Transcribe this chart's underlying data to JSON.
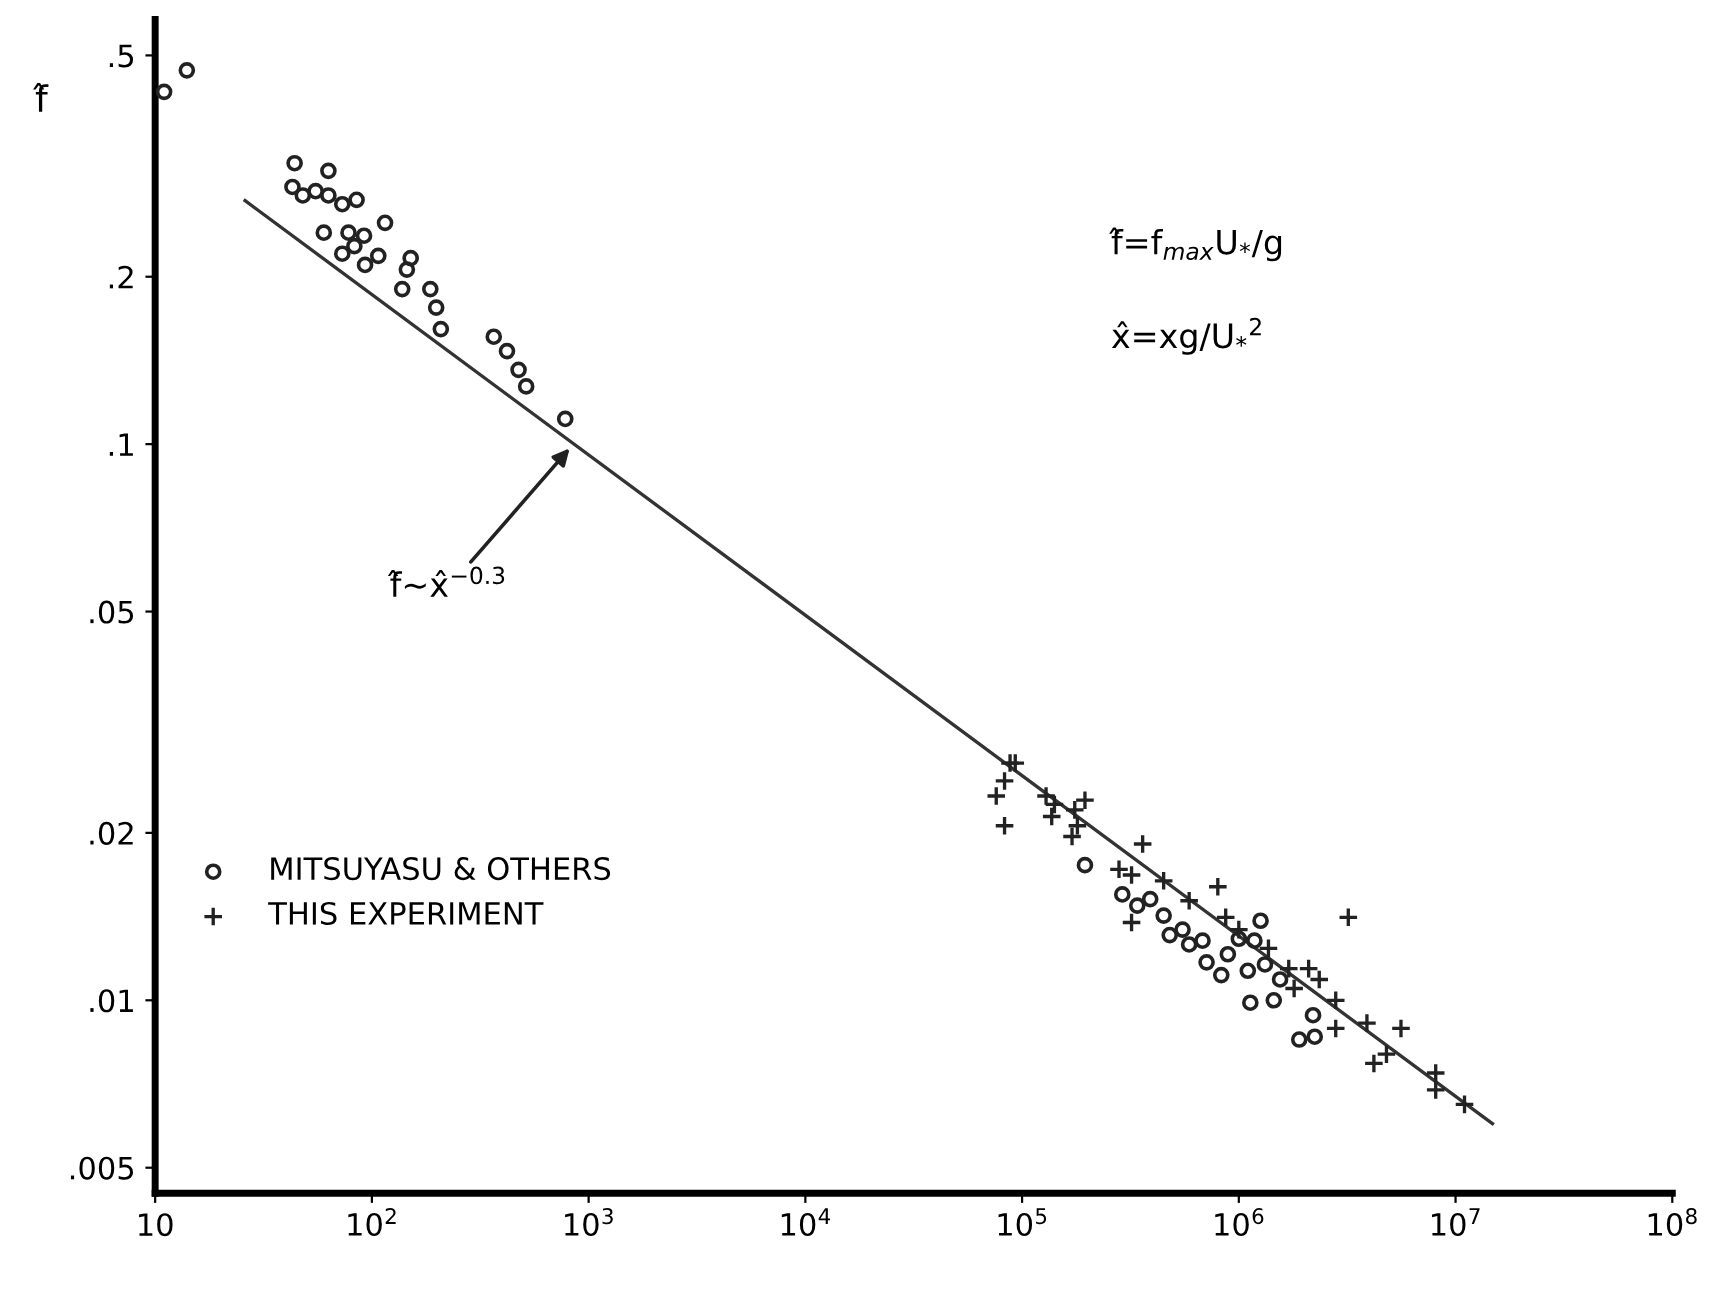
{
  "chart_data": {
    "type": "scatter",
    "ylabel": "f̂",
    "log": "xy",
    "xlim": [
      10,
      100000000
    ],
    "ylim": [
      0.0045,
      0.58
    ],
    "xticks": [
      10,
      {
        "value": 100,
        "label": "10$^{2}$"
      },
      {
        "value": 1000,
        "label": "10$^{3}$"
      },
      {
        "value": 10000,
        "label": "10$^{4}$"
      },
      {
        "value": 100000,
        "label": "10$^{5}$"
      },
      {
        "value": 1000000,
        "label": "10$^{6}$"
      },
      {
        "value": 10000000,
        "label": "10$^{7}$"
      },
      {
        "value": 100000000,
        "label": "10$^{8}$"
      }
    ],
    "yticks": [
      {
        "value": 0.5,
        "label": ".5"
      },
      {
        "value": 0.2,
        "label": ".2"
      },
      {
        "value": 0.1,
        "label": ".1"
      },
      {
        "value": 0.05,
        "label": ".05"
      },
      {
        "value": 0.02,
        "label": ".02"
      },
      {
        "value": 0.01,
        "label": ".01"
      },
      {
        "value": 0.005,
        "label": ".005"
      }
    ],
    "grid": false,
    "legend": "lower left",
    "series": [
      {
        "name": "MITSUYASU & OTHERS",
        "color": "#222222",
        "marker": "circle",
        "x": [
          11,
          14,
          44,
          43,
          48,
          55,
          63,
          63,
          73,
          85,
          60,
          78,
          92,
          83,
          73,
          93,
          107,
          115,
          151,
          145,
          138,
          186,
          198,
          208,
          365,
          420,
          475,
          515,
          780,
          195000,
          290000,
          340000,
          450000,
          550000,
          680000,
          710000,
          830000,
          1000000,
          1260000,
          1180000,
          1100000,
          1320000,
          1130000,
          1450000,
          1900000,
          2200000,
          2240000,
          590000,
          390000,
          890000,
          1550000,
          480000
        ],
        "values": [
          0.43,
          0.47,
          0.32,
          0.29,
          0.28,
          0.285,
          0.28,
          0.31,
          0.27,
          0.275,
          0.24,
          0.24,
          0.237,
          0.227,
          0.22,
          0.21,
          0.218,
          0.25,
          0.216,
          0.206,
          0.19,
          0.19,
          0.176,
          0.161,
          0.156,
          0.147,
          0.136,
          0.127,
          0.111,
          0.0175,
          0.0155,
          0.0148,
          0.0142,
          0.0134,
          0.0128,
          0.0117,
          0.0111,
          0.0129,
          0.0139,
          0.0128,
          0.0113,
          0.0116,
          0.0099,
          0.01,
          0.0085,
          0.0094,
          0.0086,
          0.0126,
          0.0152,
          0.0121,
          0.0109,
          0.0131
        ]
      },
      {
        "name": "THIS EXPERIMENT",
        "color": "#222222",
        "marker": "cross",
        "x": [
          88000,
          93000,
          83000,
          76000,
          83000,
          129000,
          141000,
          137000,
          175000,
          195000,
          170000,
          180000,
          360000,
          320000,
          800000,
          3200000,
          870000,
          1700000,
          2350000,
          2800000,
          3900000,
          5600000,
          4800000,
          4200000,
          8100000,
          8100000,
          11000000,
          2800000,
          1800000,
          590000,
          450000,
          280000,
          320000,
          1000000,
          1370000,
          2100000
        ],
        "values": [
          0.0267,
          0.0267,
          0.0248,
          0.0233,
          0.0206,
          0.0233,
          0.0225,
          0.0214,
          0.022,
          0.0229,
          0.0197,
          0.0206,
          0.0191,
          0.0138,
          0.016,
          0.0141,
          0.0141,
          0.0114,
          0.0109,
          0.01,
          0.0091,
          0.0089,
          0.008,
          0.0077,
          0.0074,
          0.0069,
          0.0065,
          0.0089,
          0.0105,
          0.0151,
          0.0164,
          0.0172,
          0.0168,
          0.0134,
          0.0124,
          0.0114
        ]
      },
      {
        "type": "line",
        "color": "#333333",
        "line_style": "solid",
        "x": [
          26,
          14800000
        ],
        "values": [
          0.274,
          0.006
        ]
      }
    ],
    "annotations": [
      {
        "text": "f̂~x̂$^{−0.3}$",
        "x": 850,
        "y": 0.1
      },
      "f̂=f$_{max}$U$_{*}$/g",
      "x̂=xg/U$_{*}$$^{2}$"
    ]
  }
}
